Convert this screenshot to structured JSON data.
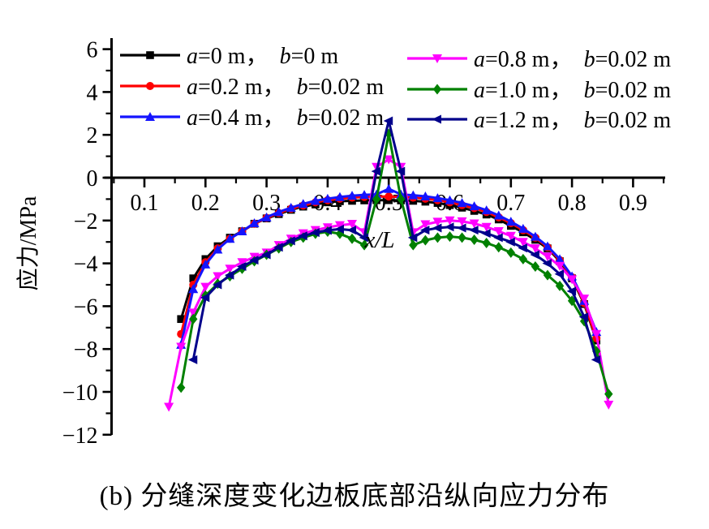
{
  "figure": {
    "caption": "(b) 分缝深度变化边板底部沿纵向应力分布"
  },
  "chart_data": {
    "type": "line",
    "title": "",
    "xlabel": "x/L",
    "ylabel": "应力/MPa",
    "xlim": [
      0.05,
      0.95
    ],
    "ylim": [
      -12,
      6.5
    ],
    "grid": false,
    "legend_position": "top inside, two columns, no frame",
    "axes": {
      "x": {
        "major": [
          0.1,
          0.2,
          0.3,
          0.4,
          0.5,
          0.6,
          0.7,
          0.8,
          0.9
        ],
        "labels": [
          "0.1",
          "0.2",
          "0.3",
          "0.4",
          "0.5",
          "0.6",
          "0.7",
          "0.8",
          "0.9"
        ],
        "minor": [
          0.05,
          0.15,
          0.25,
          0.35,
          0.45,
          0.55,
          0.65,
          0.75,
          0.85,
          0.95
        ]
      },
      "y": {
        "major": [
          6,
          4,
          2,
          0,
          -2,
          -4,
          -6,
          -8,
          -10,
          -12
        ],
        "labels": [
          "6",
          "4",
          "2",
          "0",
          "−2",
          "−4",
          "−6",
          "−8",
          "−10",
          "−12"
        ],
        "minor": [
          5,
          3,
          1,
          -1,
          -3,
          -5,
          -7,
          -9,
          -11
        ]
      }
    },
    "series": [
      {
        "name": "a=0 m, b=0 m",
        "label_a": "a=0 m，",
        "label_b": "b=0 m",
        "color": "#000000",
        "marker": "square",
        "x": [
          0.16,
          0.18,
          0.2,
          0.22,
          0.24,
          0.26,
          0.28,
          0.3,
          0.32,
          0.34,
          0.36,
          0.38,
          0.4,
          0.42,
          0.44,
          0.46,
          0.48,
          0.5,
          0.52,
          0.54,
          0.56,
          0.58,
          0.6,
          0.62,
          0.64,
          0.66,
          0.68,
          0.7,
          0.72,
          0.74,
          0.76,
          0.78,
          0.8,
          0.82,
          0.84
        ],
        "y": [
          -6.6,
          -4.7,
          -3.8,
          -3.2,
          -2.8,
          -2.5,
          -2.15,
          -1.9,
          -1.7,
          -1.5,
          -1.35,
          -1.25,
          -1.15,
          -1.1,
          -1.08,
          -1.06,
          -1.05,
          -1.05,
          -1.06,
          -1.08,
          -1.12,
          -1.18,
          -1.28,
          -1.4,
          -1.55,
          -1.72,
          -1.95,
          -2.25,
          -2.55,
          -2.9,
          -3.3,
          -3.9,
          -4.7,
          -5.9,
          -7.6
        ]
      },
      {
        "name": "a=0.2 m, b=0.02 m",
        "label_a": "a=0.2 m，",
        "label_b": "b=0.02 m",
        "color": "#ff0000",
        "marker": "circle",
        "x": [
          0.16,
          0.18,
          0.2,
          0.22,
          0.24,
          0.26,
          0.28,
          0.3,
          0.32,
          0.34,
          0.36,
          0.38,
          0.4,
          0.42,
          0.44,
          0.46,
          0.48,
          0.5,
          0.52,
          0.54,
          0.56,
          0.58,
          0.6,
          0.62,
          0.64,
          0.66,
          0.68,
          0.7,
          0.72,
          0.74,
          0.76,
          0.78,
          0.8,
          0.82,
          0.84
        ],
        "y": [
          -7.3,
          -5.0,
          -3.95,
          -3.3,
          -2.85,
          -2.5,
          -2.15,
          -1.88,
          -1.65,
          -1.45,
          -1.3,
          -1.15,
          -1.05,
          -0.98,
          -0.93,
          -0.9,
          -0.88,
          -0.88,
          -0.9,
          -0.93,
          -0.98,
          -1.05,
          -1.15,
          -1.28,
          -1.42,
          -1.6,
          -1.85,
          -2.12,
          -2.45,
          -2.8,
          -3.25,
          -3.85,
          -4.65,
          -5.85,
          -7.5
        ]
      },
      {
        "name": "a=0.4 m, b=0.02 m",
        "label_a": "a=0.4 m，",
        "label_b": "b=0.02 m",
        "color": "#1414ff",
        "marker": "triangle-up",
        "x": [
          0.16,
          0.18,
          0.2,
          0.22,
          0.24,
          0.26,
          0.28,
          0.3,
          0.32,
          0.34,
          0.36,
          0.38,
          0.4,
          0.42,
          0.44,
          0.46,
          0.48,
          0.5,
          0.52,
          0.54,
          0.56,
          0.58,
          0.6,
          0.62,
          0.64,
          0.66,
          0.68,
          0.7,
          0.72,
          0.74,
          0.76,
          0.78,
          0.8,
          0.82,
          0.84
        ],
        "y": [
          -7.8,
          -5.2,
          -4.05,
          -3.35,
          -2.85,
          -2.5,
          -2.12,
          -1.85,
          -1.6,
          -1.4,
          -1.22,
          -1.08,
          -0.98,
          -0.9,
          -0.84,
          -0.8,
          -0.78,
          -0.52,
          -0.78,
          -0.82,
          -0.87,
          -0.95,
          -1.05,
          -1.18,
          -1.33,
          -1.52,
          -1.76,
          -2.05,
          -2.38,
          -2.75,
          -3.2,
          -3.8,
          -4.6,
          -5.75,
          -7.2
        ]
      },
      {
        "name": "a=0.8 m, b=0.02 m",
        "label_a": "a=0.8 m，",
        "label_b": "b=0.02 m",
        "color": "#ff00ff",
        "marker": "triangle-down",
        "x": [
          0.14,
          0.16,
          0.18,
          0.2,
          0.22,
          0.24,
          0.26,
          0.28,
          0.3,
          0.32,
          0.34,
          0.36,
          0.38,
          0.4,
          0.42,
          0.44,
          0.46,
          0.48,
          0.5,
          0.52,
          0.54,
          0.56,
          0.58,
          0.6,
          0.62,
          0.64,
          0.66,
          0.68,
          0.7,
          0.72,
          0.74,
          0.76,
          0.78,
          0.8,
          0.82,
          0.84,
          0.86
        ],
        "y": [
          -10.7,
          -7.9,
          -6.3,
          -5.1,
          -4.6,
          -4.25,
          -3.95,
          -3.7,
          -3.5,
          -3.15,
          -2.85,
          -2.6,
          -2.45,
          -2.32,
          -2.22,
          -2.16,
          -2.55,
          0.5,
          0.85,
          0.5,
          -2.55,
          -2.18,
          -2.06,
          -2.0,
          -2.04,
          -2.14,
          -2.3,
          -2.5,
          -2.72,
          -3.0,
          -3.3,
          -3.68,
          -4.12,
          -4.75,
          -5.65,
          -7.3,
          -10.6
        ]
      },
      {
        "name": "a=1.0 m, b=0.02 m",
        "label_a": "a=1.0 m，",
        "label_b": "b=0.02 m",
        "color": "#008000",
        "marker": "diamond",
        "x": [
          0.16,
          0.18,
          0.2,
          0.22,
          0.24,
          0.26,
          0.28,
          0.3,
          0.32,
          0.34,
          0.36,
          0.38,
          0.4,
          0.42,
          0.44,
          0.46,
          0.48,
          0.5,
          0.52,
          0.54,
          0.56,
          0.58,
          0.6,
          0.62,
          0.64,
          0.66,
          0.68,
          0.7,
          0.72,
          0.74,
          0.76,
          0.78,
          0.8,
          0.82,
          0.84,
          0.86
        ],
        "y": [
          -9.8,
          -6.6,
          -5.5,
          -4.95,
          -4.6,
          -4.25,
          -3.9,
          -3.6,
          -3.3,
          -3.0,
          -2.8,
          -2.62,
          -2.52,
          -2.62,
          -2.85,
          -3.15,
          -1.0,
          2.05,
          -1.0,
          -3.15,
          -2.92,
          -2.8,
          -2.75,
          -2.8,
          -2.9,
          -3.05,
          -3.25,
          -3.5,
          -3.8,
          -4.15,
          -4.55,
          -5.05,
          -5.75,
          -6.7,
          -8.1,
          -10.1
        ]
      },
      {
        "name": "a=1.2 m, b=0.02 m",
        "label_a": "a=1.2 m，",
        "label_b": "b=0.02 m",
        "color": "#00008b",
        "marker": "triangle-left",
        "x": [
          0.18,
          0.2,
          0.22,
          0.24,
          0.26,
          0.28,
          0.3,
          0.32,
          0.34,
          0.36,
          0.38,
          0.4,
          0.42,
          0.44,
          0.46,
          0.48,
          0.5,
          0.52,
          0.54,
          0.56,
          0.58,
          0.6,
          0.62,
          0.64,
          0.66,
          0.68,
          0.7,
          0.72,
          0.74,
          0.76,
          0.78,
          0.8,
          0.82,
          0.84
        ],
        "y": [
          -8.5,
          -5.6,
          -5.0,
          -4.55,
          -4.15,
          -3.85,
          -3.6,
          -3.25,
          -2.95,
          -2.72,
          -2.56,
          -2.46,
          -2.4,
          -2.45,
          -2.8,
          0.3,
          2.65,
          0.3,
          -2.8,
          -2.45,
          -2.35,
          -2.3,
          -2.35,
          -2.45,
          -2.6,
          -2.8,
          -3.0,
          -3.28,
          -3.6,
          -4.0,
          -4.5,
          -5.3,
          -6.5,
          -8.5
        ]
      }
    ]
  }
}
